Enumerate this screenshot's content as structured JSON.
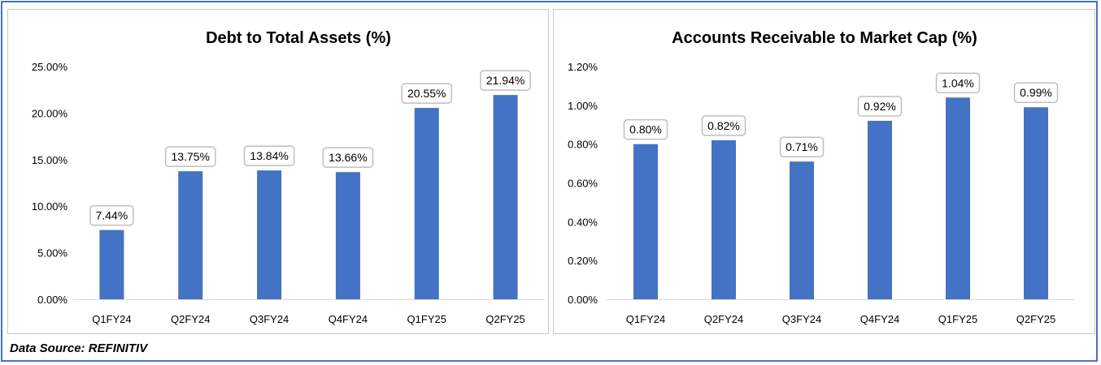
{
  "source_label": "Data Source: REFINITIV",
  "colors": {
    "bar": "#4472c4",
    "frame": "#4472c4",
    "label_box": "#bfbfbf"
  },
  "chart_data": [
    {
      "type": "bar",
      "title": "Debt to Total Assets (%)",
      "categories": [
        "Q1FY24",
        "Q2FY24",
        "Q3FY24",
        "Q4FY24",
        "Q1FY25",
        "Q2FY25"
      ],
      "values": [
        7.44,
        13.75,
        13.84,
        13.66,
        20.55,
        21.94
      ],
      "data_labels": [
        "7.44%",
        "13.75%",
        "13.84%",
        "13.66%",
        "20.55%",
        "21.94%"
      ],
      "yticks": [
        0,
        5,
        10,
        15,
        20,
        25
      ],
      "ytick_labels": [
        "0.00%",
        "5.00%",
        "10.00%",
        "15.00%",
        "20.00%",
        "25.00%"
      ],
      "ylim": [
        0,
        25
      ],
      "xlabel": "",
      "ylabel": "",
      "grid": false,
      "legend": "none"
    },
    {
      "type": "bar",
      "title": "Accounts Receivable to Market Cap (%)",
      "categories": [
        "Q1FY24",
        "Q2FY24",
        "Q3FY24",
        "Q4FY24",
        "Q1FY25",
        "Q2FY25"
      ],
      "values": [
        0.8,
        0.82,
        0.71,
        0.92,
        1.04,
        0.99
      ],
      "data_labels": [
        "0.80%",
        "0.82%",
        "0.71%",
        "0.92%",
        "1.04%",
        "0.99%"
      ],
      "yticks": [
        0,
        0.2,
        0.4,
        0.6,
        0.8,
        1.0,
        1.2
      ],
      "ytick_labels": [
        "0.00%",
        "0.20%",
        "0.40%",
        "0.60%",
        "0.80%",
        "1.00%",
        "1.20%"
      ],
      "ylim": [
        0,
        1.2
      ],
      "xlabel": "",
      "ylabel": "",
      "grid": false,
      "legend": "none"
    }
  ]
}
